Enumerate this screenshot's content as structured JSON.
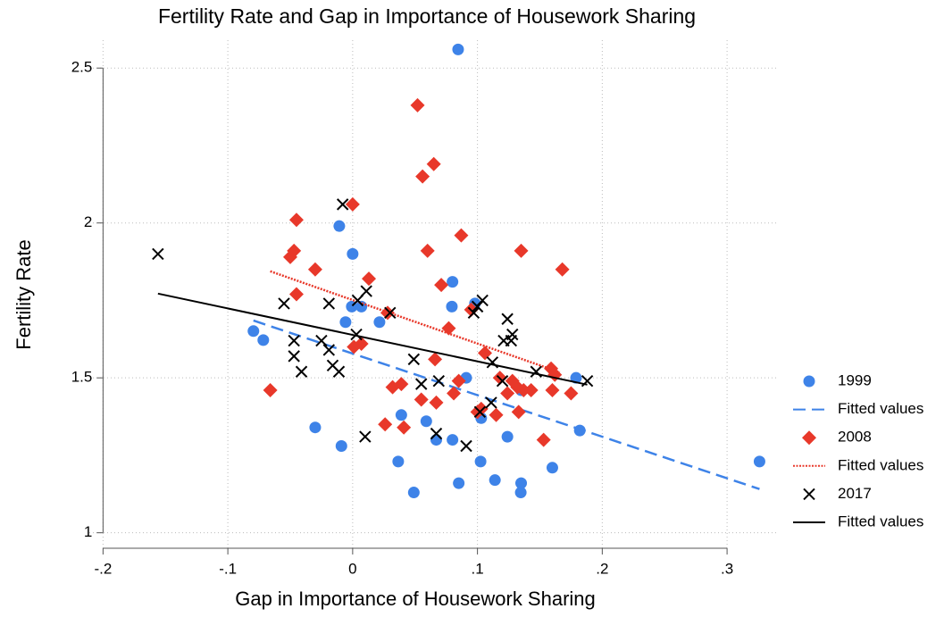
{
  "chart_data": {
    "type": "scatter",
    "title": "Fertility Rate and Gap in Importance of Housework Sharing",
    "x_label": "Gap in Importance of Housework Sharing",
    "y_label": "Fertility Rate",
    "xlim": [
      -0.211,
      0.34
    ],
    "ylim": [
      0.95,
      2.59
    ],
    "xticks": [
      {
        "value": -0.2,
        "label": "-.2"
      },
      {
        "value": -0.1,
        "label": "-.1"
      },
      {
        "value": 0,
        "label": "0"
      },
      {
        "value": 0.1,
        "label": ".1"
      },
      {
        "value": 0.2,
        "label": ".2"
      },
      {
        "value": 0.3,
        "label": ".3"
      }
    ],
    "yticks": [
      1,
      1.5,
      2,
      2.5
    ],
    "grid": true,
    "legend": "right",
    "series": [
      {
        "name": "1999",
        "color": "#3e83e8",
        "marker": "circle",
        "x": [
          -0.0795,
          -0.0716,
          -0.03,
          -0.0107,
          -0.009,
          -0.0057,
          -0.0007,
          0,
          0.007,
          0.0215,
          0.0365,
          0.039,
          0.049,
          0.059,
          0.067,
          0.0795,
          0.08,
          0.08,
          0.0845,
          0.085,
          0.091,
          0.098,
          0.1025,
          0.103,
          0.114,
          0.124,
          0.1347,
          0.135,
          0.135,
          0.16,
          0.179,
          0.182,
          0.326
        ],
        "values": [
          1.651,
          1.622,
          1.34,
          1.99,
          1.28,
          1.68,
          1.73,
          1.9,
          1.73,
          1.68,
          1.23,
          1.38,
          1.13,
          1.36,
          1.3,
          1.73,
          1.81,
          1.3,
          2.56,
          1.16,
          1.5,
          1.74,
          1.23,
          1.37,
          1.17,
          1.31,
          1.13,
          1.16,
          1.46,
          1.21,
          1.5,
          1.33,
          1.23
        ]
      },
      {
        "name": "Fitted values",
        "color": "#3e83e8",
        "line": "dashed",
        "x": [
          -0.0795,
          0.326
        ],
        "values": [
          1.685,
          1.141
        ]
      },
      {
        "name": "2008",
        "color": "#e8382a",
        "marker": "diamond",
        "x": [
          -0.066,
          -0.05,
          -0.047,
          -0.045,
          -0.045,
          -0.03,
          0,
          0.001,
          0.007,
          0.013,
          0.026,
          0.028,
          0.032,
          0.039,
          0.041,
          0.052,
          0.056,
          0.055,
          0.06,
          0.065,
          0.066,
          0.067,
          0.071,
          0.077,
          0.081,
          0.085,
          0.087,
          0.095,
          0.1,
          0.103,
          0.106,
          0.115,
          0.118,
          0.124,
          0.128,
          0.132,
          0.133,
          0.135,
          0.137,
          0.143,
          0.153,
          0.159,
          0.16,
          0.162,
          0.168,
          0.175
        ],
        "values": [
          1.46,
          1.89,
          1.91,
          2.01,
          1.77,
          1.85,
          2.06,
          1.6,
          1.61,
          1.82,
          1.35,
          1.71,
          1.47,
          1.48,
          1.34,
          2.38,
          2.15,
          1.43,
          1.91,
          2.19,
          1.56,
          1.42,
          1.8,
          1.66,
          1.45,
          1.49,
          1.96,
          1.72,
          1.39,
          1.4,
          1.58,
          1.38,
          1.5,
          1.45,
          1.49,
          1.47,
          1.39,
          1.91,
          1.46,
          1.46,
          1.3,
          1.53,
          1.46,
          1.51,
          1.85,
          1.45
        ]
      },
      {
        "name": "Fitted values",
        "color": "#e8382a",
        "line": "dotted",
        "x": [
          -0.066,
          0.166
        ],
        "values": [
          1.844,
          1.518
        ]
      },
      {
        "name": "2017",
        "color": "#000000",
        "marker": "x",
        "x": [
          -0.156,
          -0.055,
          -0.047,
          -0.047,
          -0.041,
          -0.025,
          -0.019,
          -0.019,
          -0.016,
          -0.011,
          -0.008,
          0.003,
          0.004,
          0.011,
          0.01,
          0.03,
          0.049,
          0.055,
          0.067,
          0.069,
          0.091,
          0.097,
          0.1,
          0.102,
          0.104,
          0.111,
          0.112,
          0.12,
          0.121,
          0.124,
          0.127,
          0.128,
          0.147,
          0.188
        ],
        "values": [
          1.9,
          1.74,
          1.62,
          1.57,
          1.52,
          1.62,
          1.74,
          1.59,
          1.54,
          1.52,
          2.06,
          1.64,
          1.75,
          1.78,
          1.31,
          1.71,
          1.56,
          1.48,
          1.32,
          1.49,
          1.28,
          1.71,
          1.73,
          1.39,
          1.75,
          1.42,
          1.55,
          1.49,
          1.62,
          1.69,
          1.62,
          1.64,
          1.52,
          1.49
        ]
      },
      {
        "name": "Fitted values",
        "color": "#000000",
        "line": "solid",
        "x": [
          -0.156,
          0.188
        ],
        "values": [
          1.772,
          1.478
        ]
      }
    ]
  }
}
